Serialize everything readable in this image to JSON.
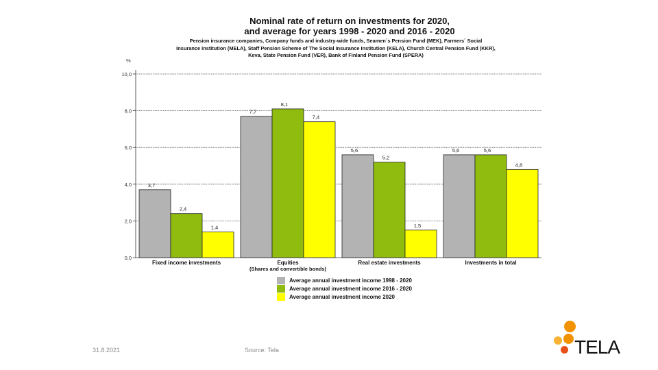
{
  "chart_data": {
    "type": "bar",
    "title_line1": "Nominal rate of return on investments for 2020,",
    "title_line2": "and average for years 1998 - 2020 and 2016 - 2020",
    "subtitle_lines": [
      "Pension insurance companies, Company funds and industry-wide funds, Seamen´s Pension Fund (MEK), Farmers´ Social",
      "Insurance Institution (MELA), Staff Pension Scheme of The Social Insurance Institution (KELA), Church Central Pension Fund (KKR),",
      "Keva, State Pension Fund (VER), Bank of Finland Pension Fund (SPERA)"
    ],
    "ylabel": "%",
    "ylim": [
      0,
      10
    ],
    "yticks": [
      "0,0",
      "2,0",
      "4,0",
      "6,0",
      "8,0",
      "10,0"
    ],
    "categories": [
      "Fixed income investments",
      "Equities",
      "Real estate investments",
      "Investments  in total"
    ],
    "category_sublabels": [
      "",
      "(Shares and convertible bonds)",
      "",
      ""
    ],
    "series": [
      {
        "name": "Average annual investment income 1998 - 2020",
        "color": "#b3b3b3",
        "values": [
          3.7,
          7.7,
          5.6,
          5.6
        ],
        "labels": [
          "3,7",
          "7,7",
          "5,6",
          "5,6"
        ]
      },
      {
        "name": "Average annual investment income 2016 - 2020",
        "color": "#8fbc0e",
        "values": [
          2.4,
          8.1,
          5.2,
          5.6
        ],
        "labels": [
          "2,4",
          "8,1",
          "5,2",
          "5,6"
        ]
      },
      {
        "name": "Average annual investment income 2020",
        "color": "#ffff00",
        "values": [
          1.4,
          7.4,
          1.5,
          4.8
        ],
        "labels": [
          "1,4",
          "7,4",
          "1,5",
          "4,8"
        ]
      }
    ]
  },
  "footer": {
    "date": "31.8.2021",
    "source": "Source: Tela"
  },
  "logo": {
    "text": "TELA",
    "colors": [
      "#f39200",
      "#f7b233",
      "#e8501b"
    ]
  }
}
